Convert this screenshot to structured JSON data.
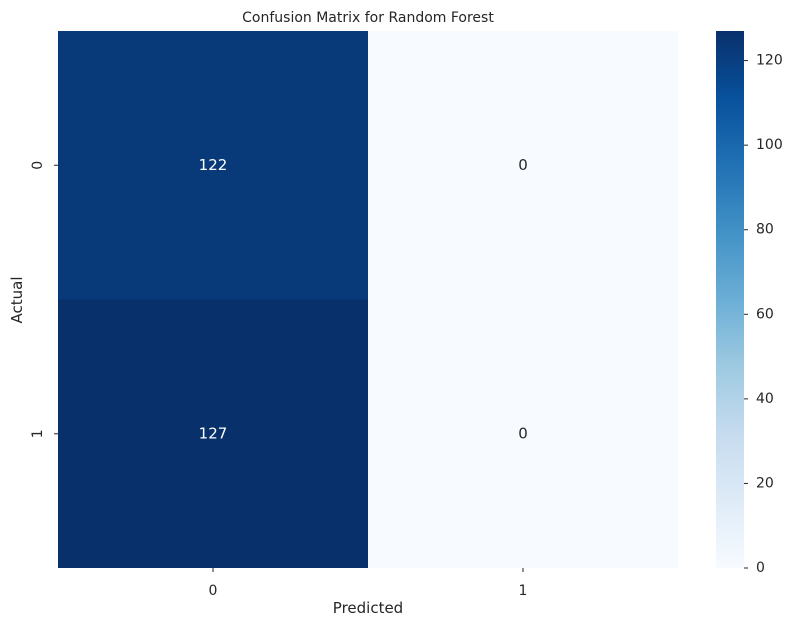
{
  "chart_data": {
    "type": "heatmap",
    "title": "Confusion Matrix for Random Forest",
    "xlabel": "Predicted",
    "ylabel": "Actual",
    "x_categories": [
      "0",
      "1"
    ],
    "y_categories": [
      "0",
      "1"
    ],
    "values": [
      [
        122,
        0
      ],
      [
        127,
        0
      ]
    ],
    "annotations": [
      [
        "122",
        "0"
      ],
      [
        "127",
        "0"
      ]
    ],
    "colormap": "Blues",
    "color_range": [
      0,
      127
    ],
    "colorbar_ticks": [
      "0",
      "20",
      "40",
      "60",
      "80",
      "100",
      "120"
    ],
    "colorbar_tick_values": [
      0,
      20,
      40,
      60,
      80,
      100,
      120
    ],
    "colors": {
      "low": "#f7fbff",
      "high": "#08306b",
      "annotation_dark": "#262626",
      "annotation_light": "#ffffff"
    }
  }
}
